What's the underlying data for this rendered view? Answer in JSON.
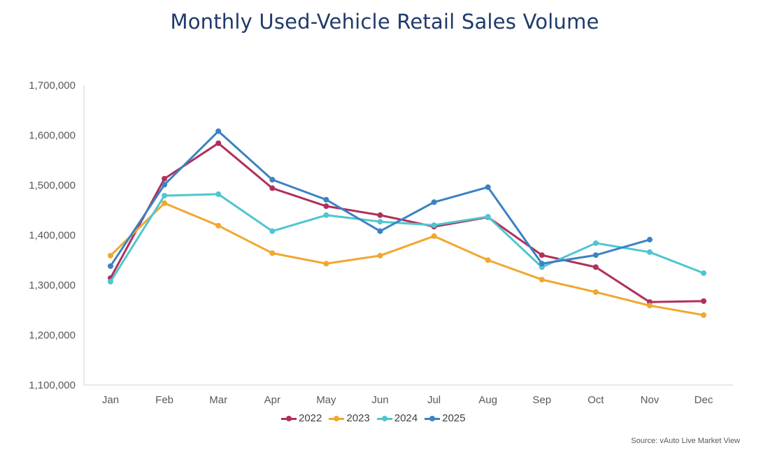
{
  "chart_data": {
    "type": "line",
    "title": "Monthly Used-Vehicle Retail Sales Volume",
    "xlabel": "",
    "ylabel": "",
    "categories": [
      "Jan",
      "Feb",
      "Mar",
      "Apr",
      "May",
      "Jun",
      "Jul",
      "Aug",
      "Sep",
      "Oct",
      "Nov",
      "Dec"
    ],
    "ylim": [
      1100000,
      1700000
    ],
    "yticks": [
      1100000,
      1200000,
      1300000,
      1400000,
      1500000,
      1600000,
      1700000
    ],
    "ytick_labels": [
      "1,100,000",
      "1,200,000",
      "1,300,000",
      "1,400,000",
      "1,500,000",
      "1,600,000",
      "1,700,000"
    ],
    "grid": false,
    "legend_position": "bottom",
    "series": [
      {
        "name": "2022",
        "color": "#b0305a",
        "values": [
          1314000,
          1513000,
          1584000,
          1494000,
          1458000,
          1440000,
          1417000,
          1436000,
          1360000,
          1336000,
          1266000,
          1268000
        ]
      },
      {
        "name": "2023",
        "color": "#f0a830",
        "values": [
          1359000,
          1464000,
          1419000,
          1364000,
          1343000,
          1359000,
          1398000,
          1350000,
          1311000,
          1286000,
          1259000,
          1240000
        ]
      },
      {
        "name": "2024",
        "color": "#4fc6d0",
        "values": [
          1307000,
          1479000,
          1482000,
          1408000,
          1440000,
          1427000,
          1420000,
          1437000,
          1336000,
          1384000,
          1366000,
          1324000
        ]
      },
      {
        "name": "2025",
        "color": "#3a82c4",
        "values": [
          1338000,
          1501000,
          1608000,
          1511000,
          1471000,
          1408000,
          1466000,
          1496000,
          1343000,
          1360000,
          1391000,
          null
        ]
      }
    ],
    "source": "Source: vAuto Live Market View"
  }
}
